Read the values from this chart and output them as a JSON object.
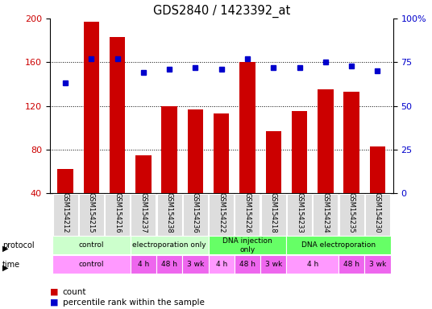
{
  "title": "GDS2840 / 1423392_at",
  "samples": [
    "GSM154212",
    "GSM154215",
    "GSM154216",
    "GSM154237",
    "GSM154238",
    "GSM154236",
    "GSM154222",
    "GSM154226",
    "GSM154218",
    "GSM154233",
    "GSM154234",
    "GSM154235",
    "GSM154230"
  ],
  "counts": [
    62,
    197,
    183,
    75,
    120,
    117,
    113,
    160,
    97,
    115,
    135,
    133,
    83
  ],
  "percentile": [
    63,
    77,
    77,
    69,
    71,
    72,
    71,
    77,
    72,
    72,
    75,
    73,
    70
  ],
  "ylim_left": [
    40,
    200
  ],
  "ylim_right": [
    0,
    100
  ],
  "yticks_left": [
    40,
    80,
    120,
    160,
    200
  ],
  "yticks_right": [
    0,
    25,
    50,
    75,
    100
  ],
  "bar_color": "#cc0000",
  "dot_color": "#0000cc",
  "protocol_groups": [
    {
      "label": "control",
      "start": 0,
      "end": 3,
      "color": "#ccffcc"
    },
    {
      "label": "electroporation only",
      "start": 3,
      "end": 6,
      "color": "#ccffcc"
    },
    {
      "label": "DNA injection\nonly",
      "start": 6,
      "end": 9,
      "color": "#66ff66"
    },
    {
      "label": "DNA electroporation",
      "start": 9,
      "end": 13,
      "color": "#66ff66"
    }
  ],
  "time_groups": [
    {
      "label": "control",
      "start": 0,
      "end": 3,
      "color": "#ff99ff"
    },
    {
      "label": "4 h",
      "start": 3,
      "end": 4,
      "color": "#ee66ee"
    },
    {
      "label": "48 h",
      "start": 4,
      "end": 5,
      "color": "#ee66ee"
    },
    {
      "label": "3 wk",
      "start": 5,
      "end": 6,
      "color": "#ee66ee"
    },
    {
      "label": "4 h",
      "start": 6,
      "end": 7,
      "color": "#ff99ff"
    },
    {
      "label": "48 h",
      "start": 7,
      "end": 8,
      "color": "#ee66ee"
    },
    {
      "label": "3 wk",
      "start": 8,
      "end": 9,
      "color": "#ee66ee"
    },
    {
      "label": "4 h",
      "start": 9,
      "end": 11,
      "color": "#ff99ff"
    },
    {
      "label": "48 h",
      "start": 11,
      "end": 12,
      "color": "#ee66ee"
    },
    {
      "label": "3 wk",
      "start": 12,
      "end": 13,
      "color": "#ee66ee"
    }
  ]
}
